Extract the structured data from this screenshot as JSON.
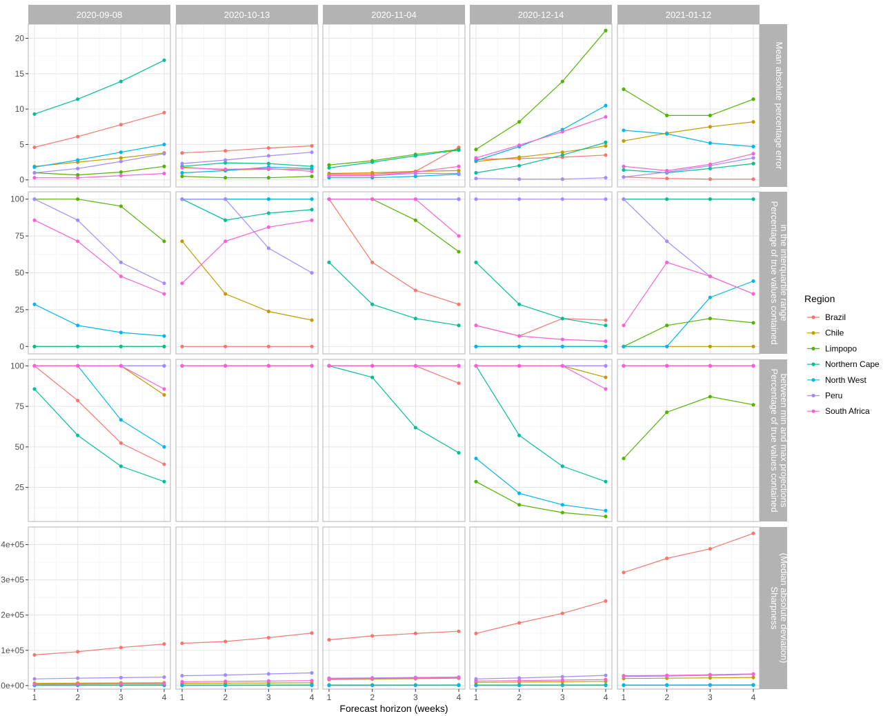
{
  "chart_data": {
    "type": "line",
    "facet_columns": [
      "2020-09-08",
      "2020-10-13",
      "2020-11-04",
      "2020-12-14",
      "2021-01-12"
    ],
    "facet_rows": [
      {
        "label_lines": [
          "Mean absolute percentage error"
        ],
        "ylim": [
          -1,
          22
        ],
        "ticks": [
          0,
          5,
          10,
          15,
          20
        ],
        "tick_labels": [
          "0",
          "5",
          "10",
          "15",
          "20"
        ]
      },
      {
        "label_lines": [
          "Percentage of true values contained",
          "in the interquartile range"
        ],
        "ylim": [
          -5,
          105
        ],
        "ticks": [
          0,
          25,
          50,
          75,
          100
        ],
        "tick_labels": [
          "0",
          "25",
          "50",
          "75",
          "100"
        ]
      },
      {
        "label_lines": [
          "Percentage of true values contained",
          "between min and max projections"
        ],
        "ylim": [
          4,
          104
        ],
        "ticks": [
          25,
          50,
          75,
          100
        ],
        "tick_labels": [
          "25",
          "50",
          "75",
          "100"
        ]
      },
      {
        "label_lines": [
          "Sharpness",
          "(Median absolute deviation)"
        ],
        "ylim": [
          -10000,
          450000
        ],
        "ticks": [
          0,
          100000,
          200000,
          300000,
          400000
        ],
        "tick_labels": [
          "0e+00",
          "1e+05",
          "2e+05",
          "3e+05",
          "4e+05"
        ]
      }
    ],
    "x": [
      1,
      2,
      3,
      4
    ],
    "x_ticks": [
      "1",
      "2",
      "3",
      "4"
    ],
    "xlabel": "Forecast horizon (weeks)",
    "legend": {
      "title": "Region",
      "placement": "right"
    },
    "series": [
      {
        "name": "Brazil",
        "color": "#F8766D"
      },
      {
        "name": "Chile",
        "color": "#C49A00"
      },
      {
        "name": "Limpopo",
        "color": "#53B400"
      },
      {
        "name": "Northern Cape",
        "color": "#00C094"
      },
      {
        "name": "North West",
        "color": "#00B6EB"
      },
      {
        "name": "Peru",
        "color": "#A58AFF"
      },
      {
        "name": "South Africa",
        "color": "#FB61D7"
      }
    ],
    "panels": [
      [
        [
          [
            4.6,
            6.1,
            7.8,
            9.5
          ],
          [
            1.9,
            2.5,
            3.1,
            3.8
          ],
          [
            1.0,
            0.7,
            1.1,
            1.9
          ],
          [
            9.3,
            11.4,
            13.9,
            16.9
          ],
          [
            1.8,
            2.8,
            3.9,
            5.0
          ],
          [
            1.0,
            1.6,
            2.6,
            3.7
          ],
          [
            0.3,
            0.3,
            0.6,
            0.9
          ]
        ],
        [
          [
            3.8,
            4.1,
            4.5,
            4.8
          ],
          [
            1.8,
            1.4,
            1.5,
            1.5
          ],
          [
            0.5,
            0.3,
            0.3,
            0.5
          ],
          [
            1.9,
            2.4,
            2.3,
            1.9
          ],
          [
            1.0,
            1.3,
            1.8,
            1.6
          ],
          [
            2.3,
            2.8,
            3.4,
            3.9
          ],
          [
            1.7,
            1.5,
            1.6,
            1.2
          ]
        ],
        [
          [
            0.8,
            0.8,
            1.2,
            4.6
          ],
          [
            0.9,
            1.0,
            1.2,
            1.3
          ],
          [
            2.1,
            2.7,
            3.6,
            4.3
          ],
          [
            1.7,
            2.5,
            3.4,
            4.2
          ],
          [
            0.3,
            0.3,
            0.5,
            0.8
          ],
          [
            0.6,
            0.6,
            0.9,
            0.9
          ],
          [
            0.6,
            0.6,
            1.1,
            1.9
          ]
        ],
        [
          [
            2.9,
            3.0,
            3.2,
            3.5
          ],
          [
            2.6,
            3.2,
            3.9,
            4.8
          ],
          [
            4.3,
            8.2,
            13.9,
            21.1
          ],
          [
            1.0,
            2.0,
            3.5,
            5.3
          ],
          [
            2.7,
            4.7,
            7.1,
            10.5
          ],
          [
            0.2,
            0.1,
            0.1,
            0.3
          ],
          [
            3.1,
            4.9,
            6.8,
            8.9
          ]
        ],
        [
          [
            0.4,
            0.2,
            0.1,
            0.1
          ],
          [
            5.5,
            6.6,
            7.5,
            8.2
          ],
          [
            12.8,
            9.1,
            9.1,
            11.4
          ],
          [
            1.4,
            1.0,
            1.6,
            2.3
          ],
          [
            7.0,
            6.5,
            5.2,
            4.7
          ],
          [
            0.4,
            1.1,
            2.0,
            3.1
          ],
          [
            1.9,
            1.3,
            2.2,
            3.7
          ]
        ]
      ],
      [
        [
          [
            0,
            0,
            0,
            0
          ],
          [
            0,
            0,
            0,
            0
          ],
          [
            100,
            100,
            95.2,
            71.4
          ],
          [
            0,
            0,
            0,
            0
          ],
          [
            28.6,
            14.3,
            9.5,
            7.1
          ],
          [
            100,
            85.7,
            57.1,
            42.9
          ],
          [
            85.7,
            71.4,
            47.6,
            35.7
          ]
        ],
        [
          [
            0,
            0,
            0,
            0
          ],
          [
            71.4,
            35.7,
            23.8,
            17.9
          ],
          [
            100,
            100,
            100,
            100
          ],
          [
            100,
            85.7,
            90.5,
            92.9
          ],
          [
            100,
            100,
            100,
            100
          ],
          [
            100,
            100,
            66.7,
            50
          ],
          [
            42.9,
            71.4,
            81,
            85.7
          ]
        ],
        [
          [
            100,
            57.1,
            38.1,
            28.6
          ],
          [
            100,
            100,
            100,
            100
          ],
          [
            100,
            100,
            85.7,
            64.3
          ],
          [
            57.1,
            28.6,
            19,
            14.3
          ],
          [
            100,
            100,
            100,
            100
          ],
          [
            100,
            100,
            100,
            100
          ],
          [
            100,
            100,
            100,
            75
          ]
        ],
        [
          [
            14.3,
            7.1,
            19,
            17.9
          ],
          [
            0,
            0,
            0,
            0
          ],
          [
            0,
            0,
            0,
            0
          ],
          [
            57.1,
            28.6,
            19,
            14.3
          ],
          [
            0,
            0,
            0,
            0
          ],
          [
            100,
            100,
            100,
            100
          ],
          [
            14.3,
            7.1,
            4.8,
            3.6
          ]
        ],
        [
          [
            100,
            100,
            100,
            100
          ],
          [
            0,
            0,
            0,
            0
          ],
          [
            0,
            14.3,
            19,
            16.1
          ],
          [
            100,
            100,
            100,
            100
          ],
          [
            0,
            0,
            33.3,
            44.4
          ],
          [
            100,
            71.4,
            47.6,
            35.7
          ],
          [
            14.3,
            57.1,
            47.6,
            35.7
          ]
        ]
      ],
      [
        [
          [
            100,
            78.6,
            52.4,
            39.3
          ],
          [
            100,
            100,
            100,
            82.1
          ],
          [
            100,
            100,
            100,
            100
          ],
          [
            85.7,
            57.1,
            38.1,
            28.6
          ],
          [
            100,
            100,
            66.7,
            50
          ],
          [
            100,
            100,
            100,
            100
          ],
          [
            100,
            100,
            100,
            85.7
          ]
        ],
        [
          [
            100,
            100,
            100,
            100
          ],
          [
            100,
            100,
            100,
            100
          ],
          [
            100,
            100,
            100,
            100
          ],
          [
            100,
            100,
            100,
            100
          ],
          [
            100,
            100,
            100,
            100
          ],
          [
            100,
            100,
            100,
            100
          ],
          [
            100,
            100,
            100,
            100
          ]
        ],
        [
          [
            100,
            100,
            100,
            89.3
          ],
          [
            100,
            100,
            100,
            100
          ],
          [
            100,
            100,
            100,
            100
          ],
          [
            100,
            92.9,
            61.9,
            46.4
          ],
          [
            100,
            100,
            100,
            100
          ],
          [
            100,
            100,
            100,
            100
          ],
          [
            100,
            100,
            100,
            100
          ]
        ],
        [
          [
            100,
            100,
            100,
            100
          ],
          [
            100,
            100,
            100,
            92.9
          ],
          [
            28.6,
            14.3,
            9.5,
            7.1
          ],
          [
            100,
            57.1,
            38.1,
            28.6
          ],
          [
            42.9,
            21.4,
            14.3,
            10.7
          ],
          [
            100,
            100,
            100,
            100
          ],
          [
            100,
            100,
            100,
            85.7
          ]
        ],
        [
          [
            100,
            100,
            100,
            100
          ],
          [
            100,
            100,
            100,
            100
          ],
          [
            42.9,
            71.4,
            81,
            76
          ],
          [
            100,
            100,
            100,
            100
          ],
          [
            100,
            100,
            100,
            100
          ],
          [
            100,
            100,
            100,
            100
          ],
          [
            100,
            100,
            100,
            100
          ]
        ]
      ],
      [
        [
          [
            87000,
            96000,
            108000,
            118000
          ],
          [
            6500,
            7000,
            7500,
            8000
          ],
          [
            1500,
            1500,
            1600,
            1700
          ],
          [
            1200,
            1300,
            1400,
            1500
          ],
          [
            500,
            600,
            700,
            800
          ],
          [
            19000,
            21000,
            22500,
            24000
          ],
          [
            4000,
            4500,
            5000,
            5500
          ]
        ],
        [
          [
            120000,
            125000,
            136000,
            149000
          ],
          [
            6500,
            7000,
            7500,
            8000
          ],
          [
            1500,
            1500,
            1600,
            1700
          ],
          [
            1200,
            1300,
            1400,
            1500
          ],
          [
            500,
            600,
            700,
            800
          ],
          [
            28000,
            30000,
            33000,
            36000
          ],
          [
            11000,
            12000,
            13000,
            14000
          ]
        ],
        [
          [
            130000,
            141000,
            148000,
            154000
          ],
          [
            17000,
            18500,
            19500,
            21000
          ],
          [
            1500,
            1500,
            1600,
            1700
          ],
          [
            1200,
            1300,
            1400,
            1500
          ],
          [
            500,
            600,
            700,
            800
          ],
          [
            21000,
            22000,
            23000,
            24000
          ],
          [
            19000,
            20000,
            21500,
            23000
          ]
        ],
        [
          [
            148000,
            178000,
            205000,
            240000
          ],
          [
            9000,
            10000,
            11000,
            12000
          ],
          [
            1500,
            1500,
            1600,
            1700
          ],
          [
            1200,
            1300,
            1400,
            1500
          ],
          [
            500,
            600,
            700,
            800
          ],
          [
            19000,
            21500,
            25000,
            29000
          ],
          [
            13000,
            14000,
            15500,
            17000
          ]
        ],
        [
          [
            321000,
            361000,
            388000,
            432000
          ],
          [
            20000,
            21000,
            22000,
            23000
          ],
          [
            1500,
            1500,
            1600,
            1700
          ],
          [
            1200,
            1300,
            1400,
            1500
          ],
          [
            1500,
            1600,
            1700,
            1800
          ],
          [
            26000,
            27000,
            29000,
            32000
          ],
          [
            28000,
            29000,
            31000,
            33000
          ]
        ]
      ]
    ]
  }
}
